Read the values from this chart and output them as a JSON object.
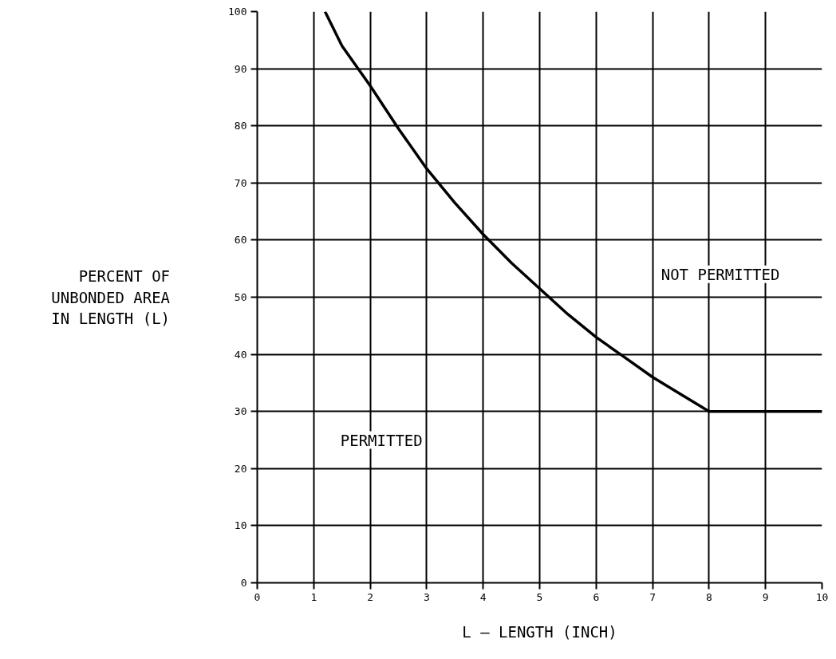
{
  "chart_data": {
    "type": "line",
    "xlabel": "L – LENGTH (INCH)",
    "ylabel": "PERCENT OF\nUNBONDED AREA\nIN LENGTH (L)",
    "x": [
      1.2,
      1.5,
      2,
      2.5,
      3,
      3.5,
      4,
      4.5,
      5,
      5.5,
      6,
      6.5,
      7,
      7.5,
      8,
      10
    ],
    "series": [
      {
        "color": "#000000",
        "values": [
          100,
          94,
          87,
          79.5,
          72.5,
          66.5,
          61,
          56,
          51.5,
          47,
          43,
          39.5,
          36,
          33,
          30,
          30
        ]
      }
    ],
    "xlim": [
      0,
      10
    ],
    "ylim": [
      0,
      100
    ],
    "xticks": [
      0,
      1,
      2,
      3,
      4,
      5,
      6,
      7,
      8,
      9,
      10
    ],
    "yticks": [
      0,
      10,
      20,
      30,
      40,
      50,
      60,
      70,
      80,
      90,
      100
    ],
    "grid": true,
    "marker": "none",
    "line_style": "solid",
    "annotations": [
      "NOT PERMITTED",
      "PERMITTED"
    ]
  }
}
